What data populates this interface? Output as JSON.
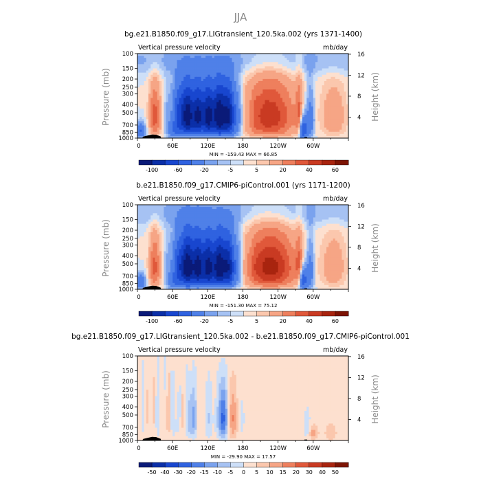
{
  "figure": {
    "season": "JJA"
  },
  "chart_data": [
    {
      "type": "heatmap",
      "title": "bg.e21.B1850.f09_g17.LIGtransient_120.5ka.002 (yrs 1371-1400)",
      "left_label": "Vertical pressure velocity",
      "right_label": "mb/day",
      "ylabel": "Pressure (mb)",
      "y2label": "Height (km)",
      "x_ticks": [
        "0",
        "60E",
        "120E",
        "180",
        "120W",
        "60W"
      ],
      "y_ticks": [
        "100",
        "150",
        "200",
        "250",
        "300",
        "400",
        "500",
        "700",
        "850",
        "1000"
      ],
      "y2_ticks": [
        "16",
        "12",
        "8",
        "4"
      ],
      "stats": "MIN = -159.43   MAX =  66.85",
      "min": -159.43,
      "max": 66.85,
      "colorbar_labels": [
        "-100",
        "-60",
        "-20",
        "-5",
        "5",
        "20",
        "40",
        "60"
      ],
      "levels": [
        -100,
        -80,
        -60,
        -40,
        -20,
        -10,
        -5,
        0,
        5,
        10,
        20,
        30,
        40,
        50,
        60
      ],
      "colors": [
        "#0a1a78",
        "#0b2fa8",
        "#1846cf",
        "#2f62e0",
        "#4f80e8",
        "#7aa2ee",
        "#a6c2f3",
        "#cddff8",
        "#fde0cf",
        "#fbc7ad",
        "#f6a585",
        "#ee7f5d",
        "#e0583a",
        "#c93a22",
        "#a8240f",
        "#7d1404"
      ]
    },
    {
      "type": "heatmap",
      "title": "b.e21.B1850.f09_g17.CMIP6-piControl.001 (yrs 1171-1200)",
      "left_label": "Vertical pressure velocity",
      "right_label": "mb/day",
      "ylabel": "Pressure (mb)",
      "y2label": "Height (km)",
      "x_ticks": [
        "0",
        "60E",
        "120E",
        "180",
        "120W",
        "60W"
      ],
      "y_ticks": [
        "100",
        "150",
        "200",
        "250",
        "300",
        "400",
        "500",
        "700",
        "850",
        "1000"
      ],
      "y2_ticks": [
        "16",
        "12",
        "8",
        "4"
      ],
      "stats": "MIN = -151.30   MAX =  75.12",
      "min": -151.3,
      "max": 75.12,
      "colorbar_labels": [
        "-100",
        "-60",
        "-20",
        "-5",
        "5",
        "20",
        "40",
        "60"
      ],
      "levels": [
        -100,
        -80,
        -60,
        -40,
        -20,
        -10,
        -5,
        0,
        5,
        10,
        20,
        30,
        40,
        50,
        60
      ],
      "colors": [
        "#0a1a78",
        "#0b2fa8",
        "#1846cf",
        "#2f62e0",
        "#4f80e8",
        "#7aa2ee",
        "#a6c2f3",
        "#cddff8",
        "#fde0cf",
        "#fbc7ad",
        "#f6a585",
        "#ee7f5d",
        "#e0583a",
        "#c93a22",
        "#a8240f",
        "#7d1404"
      ]
    },
    {
      "type": "heatmap",
      "title": "bg.e21.B1850.f09_g17.LIGtransient_120.5ka.002 - b.e21.B1850.f09_g17.CMIP6-piControl.001",
      "left_label": "Vertical pressure velocity",
      "right_label": "mb/day",
      "ylabel": "Pressure (mb)",
      "y2label": "Height (km)",
      "x_ticks": [
        "0",
        "60E",
        "120E",
        "180",
        "120W",
        "60W"
      ],
      "y_ticks": [
        "100",
        "150",
        "200",
        "250",
        "300",
        "400",
        "500",
        "700",
        "850",
        "1000"
      ],
      "y2_ticks": [
        "16",
        "12",
        "8",
        "4"
      ],
      "stats": "MIN = -29.90   MAX =  17.57",
      "min": -29.9,
      "max": 17.57,
      "colorbar_labels": [
        "-50",
        "-40",
        "-30",
        "-20",
        "-15",
        "-10",
        "-5",
        "0",
        "5",
        "10",
        "15",
        "20",
        "30",
        "40",
        "50"
      ],
      "levels": [
        -50,
        -40,
        -30,
        -20,
        -15,
        -10,
        -5,
        0,
        5,
        10,
        15,
        20,
        30,
        40,
        50
      ],
      "colors": [
        "#0a1a78",
        "#0b2fa8",
        "#1846cf",
        "#2f62e0",
        "#4f80e8",
        "#7aa2ee",
        "#a6c2f3",
        "#cddff8",
        "#fde0cf",
        "#fbc7ad",
        "#f6a585",
        "#ee7f5d",
        "#e0583a",
        "#c93a22",
        "#a8240f",
        "#7d1404"
      ]
    }
  ]
}
